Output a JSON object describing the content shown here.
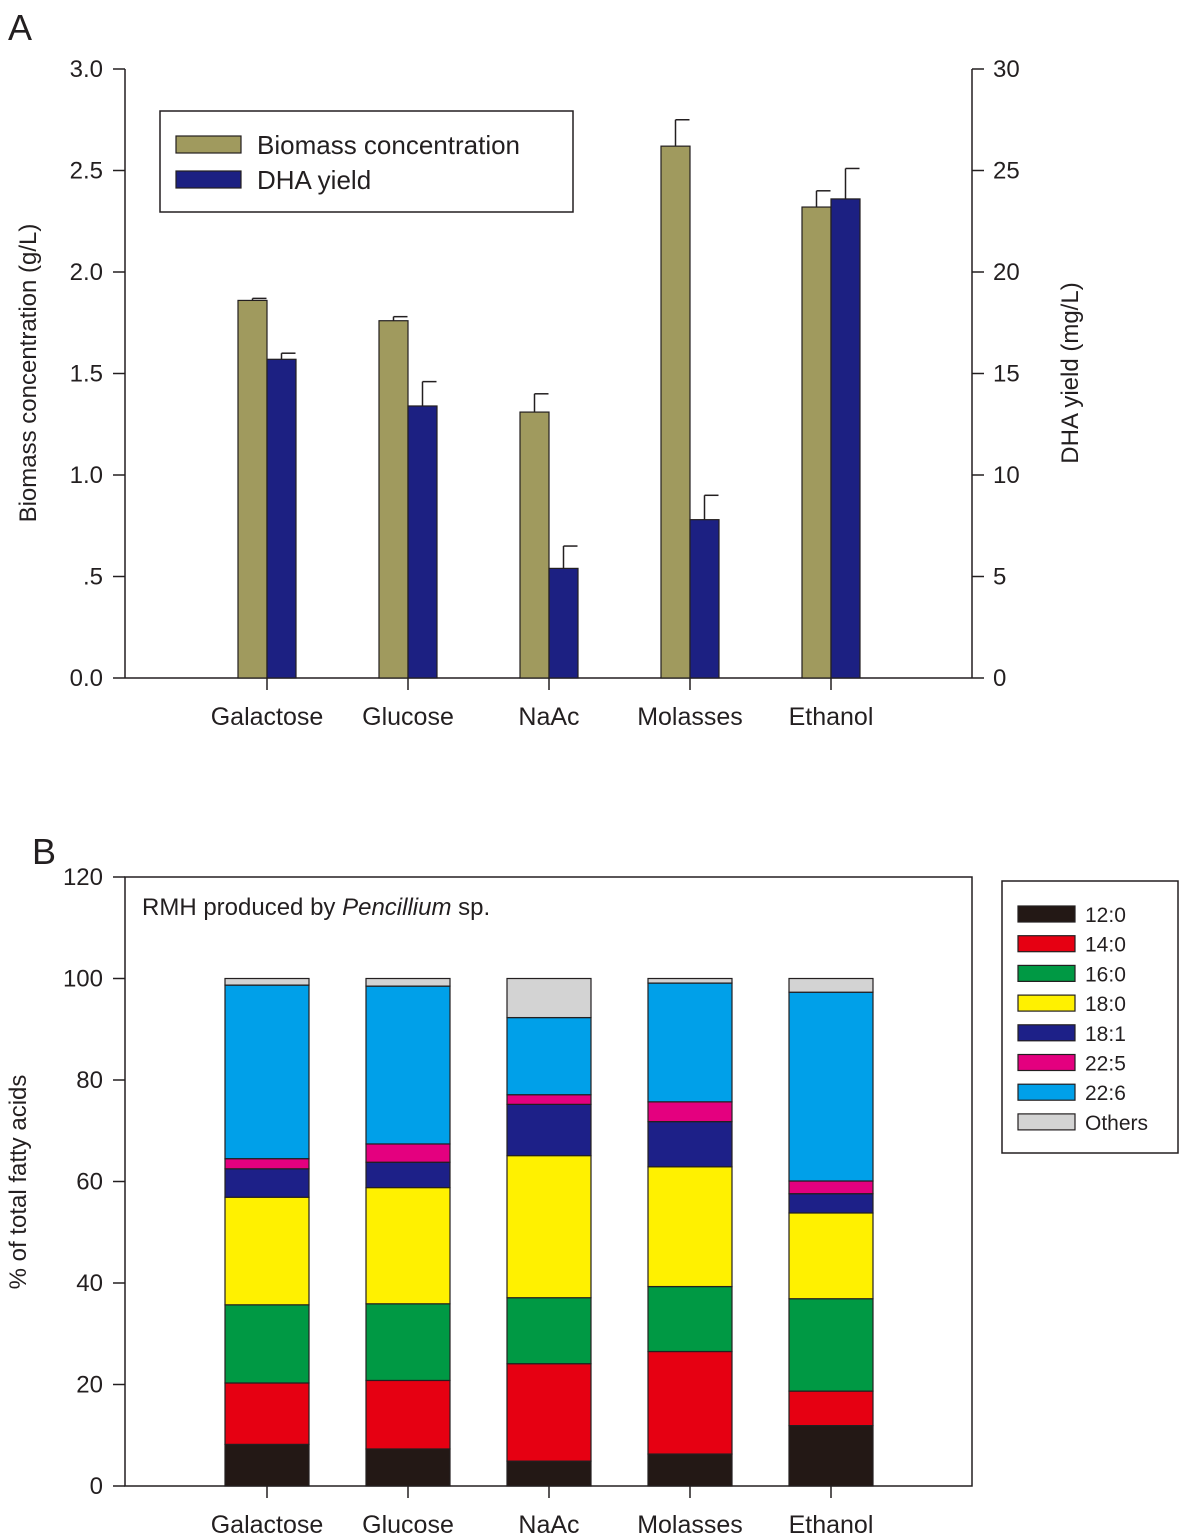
{
  "chart_data": [
    {
      "panel_label": "A",
      "type": "bar",
      "categories": [
        "Galactose",
        "Glucose",
        "NaAc",
        "Molasses",
        "Ethanol"
      ],
      "ylabel": "Biomass concentration (g/L)",
      "y2label": "DHA yield (mg/L)",
      "ylim": [
        0,
        3.0
      ],
      "y2lim": [
        0,
        30
      ],
      "yticks": [
        "0.0",
        ".5",
        "1.0",
        "1.5",
        "2.0",
        "2.5",
        "3.0"
      ],
      "yticks_values": [
        0,
        0.5,
        1.0,
        1.5,
        2.0,
        2.5,
        3.0
      ],
      "y2ticks": [
        "0",
        "5",
        "10",
        "15",
        "20",
        "25",
        "30"
      ],
      "y2ticks_values": [
        0,
        5,
        10,
        15,
        20,
        25,
        30
      ],
      "legend_position": "top-left",
      "series": [
        {
          "name": "Biomass concentration",
          "axis": "left",
          "color": "#a09a5e",
          "values": [
            1.86,
            1.76,
            1.31,
            2.62,
            2.32
          ],
          "errors": [
            0.01,
            0.02,
            0.09,
            0.13,
            0.08
          ]
        },
        {
          "name": "DHA yield",
          "axis": "right",
          "color": "#1c2082",
          "values": [
            15.7,
            13.4,
            5.4,
            7.8,
            23.6
          ],
          "errors": [
            0.3,
            1.2,
            1.1,
            1.2,
            1.5
          ]
        }
      ]
    },
    {
      "panel_label": "B",
      "type": "bar",
      "stacked": true,
      "categories": [
        "Galactose",
        "Glucose",
        "NaAc",
        "Molasses",
        "Ethanol"
      ],
      "ylabel": "% of total fatty acids",
      "ylim": [
        0,
        120
      ],
      "yticks": [
        "0",
        "20",
        "40",
        "60",
        "80",
        "100",
        "120"
      ],
      "yticks_values": [
        0,
        20,
        40,
        60,
        80,
        100,
        120
      ],
      "annotation_prefix": "RMH produced by ",
      "annotation_italic": "Pencillium",
      "annotation_suffix": " sp.",
      "legend_position": "right",
      "series": [
        {
          "name": "12:0",
          "color": "#231815",
          "values": [
            8.2,
            7.3,
            4.9,
            6.3,
            11.9
          ]
        },
        {
          "name": "14:0",
          "color": "#e60012",
          "values": [
            12.1,
            13.5,
            19.2,
            20.2,
            6.8
          ]
        },
        {
          "name": "16:0",
          "color": "#009944",
          "values": [
            15.4,
            15.1,
            13.0,
            12.8,
            18.2
          ]
        },
        {
          "name": "18:0",
          "color": "#fff100",
          "values": [
            21.2,
            22.9,
            28.0,
            23.6,
            16.9
          ]
        },
        {
          "name": "18:1",
          "color": "#1d2088",
          "values": [
            5.6,
            5.0,
            10.1,
            8.9,
            3.8
          ]
        },
        {
          "name": "22:5",
          "color": "#e4007f",
          "values": [
            2.0,
            3.6,
            1.9,
            3.9,
            2.5
          ]
        },
        {
          "name": "22:6",
          "color": "#00a0e9",
          "values": [
            34.2,
            31.1,
            15.2,
            23.4,
            37.2
          ]
        },
        {
          "name": "Others",
          "color": "#d3d3d3",
          "values": [
            1.3,
            1.5,
            7.7,
            0.9,
            2.7
          ]
        }
      ]
    }
  ]
}
